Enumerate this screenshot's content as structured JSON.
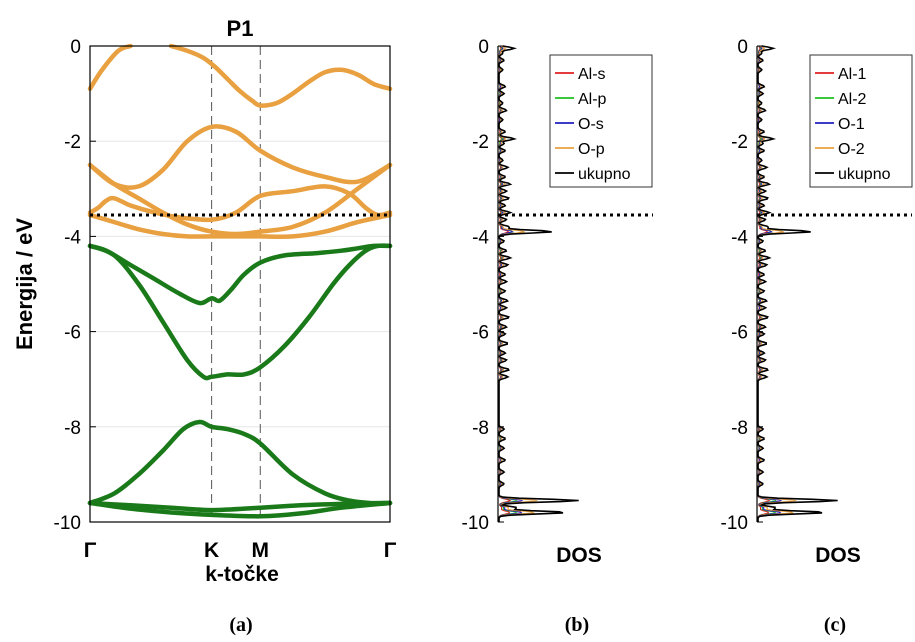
{
  "chart_data": [
    {
      "type": "line",
      "panel_caption": "(a)",
      "title": "P1",
      "xlabel": "k-točke",
      "ylabel": "Energija / eV",
      "ylim": [
        -10,
        0
      ],
      "yticks": [
        0,
        -2,
        -4,
        -6,
        -8,
        -10
      ],
      "x_tick_labels": [
        "Γ",
        "K",
        "M",
        "Γ"
      ],
      "kpath_positions": [
        0,
        1.5,
        2.1,
        3.7
      ],
      "fermi_level": -3.55,
      "grid": "horizontal",
      "colors": {
        "valence": "#E8A040",
        "core": "#1A7A1A"
      },
      "series": [
        {
          "group": "valence",
          "x": [
            0.0,
            0.15,
            0.35,
            0.5
          ],
          "y": [
            -0.9,
            -0.5,
            -0.1,
            0.0
          ]
        },
        {
          "group": "valence",
          "x": [
            1.0,
            1.2,
            1.4,
            1.55,
            1.7,
            1.85,
            2.0,
            2.1,
            2.3,
            2.5,
            2.7,
            2.9,
            3.1,
            3.3,
            3.5,
            3.7
          ],
          "y": [
            0.0,
            -0.1,
            -0.25,
            -0.45,
            -0.7,
            -0.95,
            -1.15,
            -1.25,
            -1.2,
            -1.0,
            -0.75,
            -0.55,
            -0.5,
            -0.6,
            -0.8,
            -0.9
          ]
        },
        {
          "group": "valence",
          "x": [
            0.0,
            0.3,
            0.6,
            0.9,
            1.2,
            1.5,
            1.8,
            2.1,
            2.5,
            2.9,
            3.3,
            3.7
          ],
          "y": [
            -2.5,
            -2.9,
            -3.2,
            -3.5,
            -3.75,
            -3.9,
            -3.95,
            -3.9,
            -3.8,
            -3.5,
            -3.0,
            -2.5
          ]
        },
        {
          "group": "valence",
          "x": [
            0.0,
            0.3,
            0.6,
            0.9,
            1.2,
            1.5,
            1.8,
            2.1,
            2.5,
            2.9,
            3.3,
            3.7
          ],
          "y": [
            -2.5,
            -2.9,
            -2.95,
            -2.6,
            -2.0,
            -1.7,
            -1.8,
            -2.2,
            -2.55,
            -2.75,
            -2.85,
            -2.5
          ]
        },
        {
          "group": "valence",
          "x": [
            0.0,
            0.1,
            0.2,
            0.3,
            0.5,
            0.8,
            1.1,
            1.5,
            1.8,
            2.1,
            2.5,
            2.9,
            3.2,
            3.4,
            3.55,
            3.7
          ],
          "y": [
            -3.5,
            -3.4,
            -3.25,
            -3.2,
            -3.35,
            -3.5,
            -3.6,
            -3.65,
            -3.5,
            -3.15,
            -3.05,
            -2.95,
            -3.1,
            -3.4,
            -3.55,
            -3.5
          ]
        },
        {
          "group": "valence",
          "x": [
            0.0,
            0.3,
            0.6,
            0.9,
            1.2,
            1.5,
            1.8,
            2.1,
            2.5,
            2.9,
            3.3,
            3.7
          ],
          "y": [
            -3.55,
            -3.7,
            -3.85,
            -3.95,
            -4.0,
            -4.0,
            -4.0,
            -4.0,
            -4.0,
            -3.9,
            -3.7,
            -3.55
          ]
        },
        {
          "group": "core",
          "x": [
            0.0,
            0.2,
            0.5,
            0.8,
            1.1,
            1.35,
            1.5,
            1.6,
            1.75,
            1.9,
            2.1,
            2.4,
            2.8,
            3.1,
            3.3,
            3.5,
            3.7
          ],
          "y": [
            -4.2,
            -4.3,
            -4.6,
            -4.9,
            -5.2,
            -5.4,
            -5.3,
            -5.35,
            -5.1,
            -4.8,
            -4.55,
            -4.4,
            -4.35,
            -4.3,
            -4.25,
            -4.2,
            -4.2
          ]
        },
        {
          "group": "core",
          "x": [
            0.0,
            0.3,
            0.6,
            0.9,
            1.2,
            1.4,
            1.5,
            1.7,
            1.9,
            2.1,
            2.4,
            2.7,
            3.0,
            3.2,
            3.4,
            3.55,
            3.7
          ],
          "y": [
            -4.2,
            -4.4,
            -5.0,
            -5.8,
            -6.6,
            -6.95,
            -6.95,
            -6.9,
            -6.9,
            -6.75,
            -6.3,
            -5.7,
            -5.0,
            -4.6,
            -4.3,
            -4.2,
            -4.2
          ]
        },
        {
          "group": "core",
          "x": [
            0.0,
            0.3,
            0.6,
            0.9,
            1.15,
            1.35,
            1.5,
            1.7,
            1.9,
            2.1,
            2.5,
            2.9,
            3.2,
            3.45,
            3.7
          ],
          "y": [
            -9.6,
            -9.4,
            -9.0,
            -8.5,
            -8.05,
            -7.9,
            -8.0,
            -8.05,
            -8.15,
            -8.35,
            -9.0,
            -9.4,
            -9.55,
            -9.6,
            -9.6
          ]
        },
        {
          "group": "core",
          "x": [
            0.0,
            0.5,
            1.0,
            1.5,
            2.1,
            2.6,
            3.1,
            3.7
          ],
          "y": [
            -9.6,
            -9.65,
            -9.7,
            -9.75,
            -9.7,
            -9.65,
            -9.62,
            -9.6
          ]
        },
        {
          "group": "core",
          "x": [
            0.0,
            0.5,
            1.0,
            1.5,
            2.1,
            2.6,
            3.1,
            3.7
          ],
          "y": [
            -9.6,
            -9.72,
            -9.8,
            -9.85,
            -9.88,
            -9.82,
            -9.7,
            -9.6
          ]
        }
      ]
    },
    {
      "type": "line",
      "panel_caption": "(b)",
      "xlabel": "DOS",
      "ylabel": "",
      "ylim": [
        -10,
        0
      ],
      "yticks": [
        0,
        -2,
        -4,
        -6,
        -8,
        -10
      ],
      "fermi_level": -3.55,
      "legend_position": "top-right",
      "series": [
        {
          "name": "Al-s",
          "color": "#E02020"
        },
        {
          "name": "Al-p",
          "color": "#20C020"
        },
        {
          "name": "O-s",
          "color": "#2020C0"
        },
        {
          "name": "O-p",
          "color": "#E8A040"
        },
        {
          "name": "ukupno",
          "color": "#000000"
        }
      ],
      "peaks": {
        "energy": [
          -0.05,
          -0.15,
          -0.3,
          -0.5,
          -0.85,
          -1.0,
          -1.2,
          -1.35,
          -1.55,
          -1.8,
          -1.95,
          -2.05,
          -2.2,
          -2.4,
          -2.55,
          -2.75,
          -2.9,
          -3.05,
          -3.2,
          -3.35,
          -3.5,
          -3.65,
          -3.8,
          -3.9,
          -4.1,
          -4.3,
          -4.45,
          -4.6,
          -4.8,
          -4.95,
          -5.15,
          -5.35,
          -5.5,
          -5.7,
          -5.9,
          -6.05,
          -6.25,
          -6.45,
          -6.6,
          -6.8,
          -6.95,
          -8.05,
          -8.25,
          -8.45,
          -8.7,
          -8.95,
          -9.2,
          -9.55,
          -9.7,
          -9.8
        ],
        "dos": [
          12,
          3,
          4,
          3,
          5,
          4,
          3,
          6,
          3,
          5,
          12,
          4,
          5,
          3,
          7,
          5,
          9,
          6,
          8,
          5,
          9,
          6,
          8,
          42,
          4,
          6,
          9,
          7,
          5,
          6,
          5,
          7,
          6,
          8,
          6,
          5,
          7,
          5,
          6,
          8,
          7,
          4,
          5,
          4,
          5,
          4,
          4,
          63,
          14,
          53
        ]
      }
    },
    {
      "type": "line",
      "panel_caption": "(c)",
      "xlabel": "DOS",
      "ylabel": "",
      "ylim": [
        -10,
        0
      ],
      "yticks": [
        0,
        -2,
        -4,
        -6,
        -8,
        -10
      ],
      "fermi_level": -3.55,
      "legend_position": "top-right",
      "series": [
        {
          "name": "Al-1",
          "color": "#E02020"
        },
        {
          "name": "Al-2",
          "color": "#20C020"
        },
        {
          "name": "O-1",
          "color": "#2020C0"
        },
        {
          "name": "O-2",
          "color": "#E8A040"
        },
        {
          "name": "ukupno",
          "color": "#000000"
        }
      ],
      "peaks": {
        "energy": [
          -0.05,
          -0.15,
          -0.3,
          -0.5,
          -0.85,
          -1.0,
          -1.2,
          -1.35,
          -1.55,
          -1.8,
          -1.95,
          -2.05,
          -2.2,
          -2.4,
          -2.55,
          -2.75,
          -2.9,
          -3.05,
          -3.2,
          -3.35,
          -3.5,
          -3.65,
          -3.8,
          -3.9,
          -4.1,
          -4.3,
          -4.45,
          -4.6,
          -4.8,
          -4.95,
          -5.15,
          -5.35,
          -5.5,
          -5.7,
          -5.9,
          -6.05,
          -6.25,
          -6.45,
          -6.6,
          -6.8,
          -6.95,
          -8.05,
          -8.25,
          -8.45,
          -8.7,
          -8.95,
          -9.2,
          -9.55,
          -9.7,
          -9.8
        ],
        "dos": [
          12,
          3,
          4,
          3,
          5,
          4,
          3,
          6,
          3,
          5,
          12,
          4,
          5,
          3,
          7,
          5,
          9,
          6,
          8,
          5,
          9,
          6,
          8,
          42,
          4,
          6,
          9,
          7,
          5,
          6,
          5,
          7,
          6,
          8,
          6,
          5,
          7,
          5,
          6,
          8,
          7,
          4,
          5,
          4,
          5,
          4,
          4,
          63,
          14,
          53
        ]
      }
    }
  ]
}
